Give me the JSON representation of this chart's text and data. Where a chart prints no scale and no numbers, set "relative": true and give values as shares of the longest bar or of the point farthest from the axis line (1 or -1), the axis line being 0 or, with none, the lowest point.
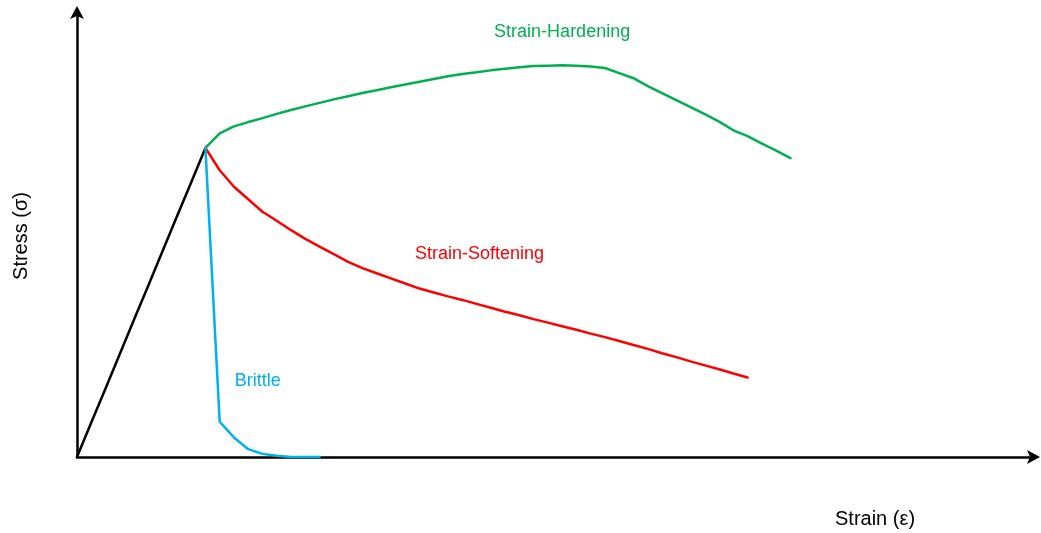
{
  "chart_data": {
    "type": "line",
    "relative": true,
    "xlabel": "Strain (ε)",
    "ylabel": "Stress (σ)",
    "marker": "none",
    "categories": [
      null,
      null,
      null,
      null,
      null,
      null,
      null,
      null,
      null,
      null,
      null,
      null,
      null,
      null,
      null,
      null,
      null,
      null,
      null,
      null,
      null,
      null,
      null,
      null,
      null,
      null,
      null,
      null,
      null,
      null,
      null,
      null,
      null,
      null,
      null,
      null,
      null,
      null,
      null,
      null,
      null,
      null,
      null,
      null,
      null,
      null,
      null,
      null,
      null,
      null,
      null,
      null,
      null,
      null,
      null,
      null,
      null,
      null,
      null,
      null,
      null,
      null,
      null,
      null,
      null,
      null,
      null,
      null
    ],
    "series": [
      {
        "color": "#000000",
        "values": [
          0,
          0.088,
          0.175,
          0.263,
          0.351,
          0.438,
          0.526,
          0.614,
          0.701,
          0.789,
          null,
          null,
          null,
          null,
          null,
          null,
          null,
          null,
          null,
          null,
          null,
          null,
          null,
          null,
          null,
          null,
          null,
          null,
          null,
          null,
          null,
          null,
          null,
          null,
          null,
          null,
          null,
          null,
          null,
          null,
          null,
          null,
          null,
          null,
          null,
          null,
          null,
          null,
          null,
          null,
          null,
          null,
          null,
          null,
          null,
          null,
          null,
          null,
          null,
          null,
          null,
          null,
          null,
          null,
          null,
          null,
          null,
          null
        ]
      },
      {
        "name": "Strain-Hardening",
        "color": "#00b050",
        "values": [
          null,
          null,
          null,
          null,
          null,
          null,
          null,
          null,
          null,
          0.789,
          0.826,
          0.844,
          0.855,
          0.865,
          0.876,
          0.886,
          0.895,
          0.904,
          0.913,
          0.921,
          0.929,
          0.936,
          0.944,
          0.951,
          0.958,
          0.965,
          0.972,
          0.978,
          0.982,
          0.987,
          0.991,
          0.995,
          0.998,
          0.999,
          1.0,
          0.999,
          0.997,
          0.993,
          0.98,
          0.967,
          0.947,
          0.929,
          0.911,
          0.893,
          0.875,
          0.856,
          0.834,
          0.819,
          0.8,
          0.782,
          0.763,
          null,
          null,
          null,
          null,
          null,
          null,
          null,
          null,
          null,
          null,
          null,
          null,
          null,
          null,
          null,
          null,
          null
        ]
      },
      {
        "name": "Strain-Softening",
        "color": "#ff0000",
        "values": [
          null,
          null,
          null,
          null,
          null,
          null,
          null,
          null,
          null,
          0.789,
          0.732,
          0.69,
          0.658,
          0.626,
          0.603,
          0.579,
          0.557,
          0.537,
          0.518,
          0.498,
          0.482,
          0.469,
          0.456,
          0.443,
          0.43,
          0.42,
          0.41,
          0.401,
          0.391,
          0.381,
          0.371,
          0.362,
          0.352,
          0.343,
          0.334,
          0.325,
          0.315,
          0.306,
          0.296,
          0.286,
          0.276,
          0.265,
          0.255,
          0.244,
          0.234,
          0.224,
          0.213,
          0.203,
          null,
          null,
          null,
          null,
          null,
          null,
          null,
          null,
          null,
          null,
          null,
          null,
          null,
          null,
          null,
          null,
          null,
          null,
          null,
          null
        ]
      },
      {
        "name": "Brittle",
        "color": "#00b0f0",
        "values": [
          null,
          null,
          null,
          null,
          null,
          null,
          null,
          null,
          null,
          0.789,
          0.09,
          0.05,
          0.02,
          0.008,
          0.003,
          0,
          0,
          0,
          null,
          null,
          null,
          null,
          null,
          null,
          null,
          null,
          null,
          null,
          null,
          null,
          null,
          null,
          null,
          null,
          null,
          null,
          null,
          null,
          null,
          null,
          null,
          null,
          null,
          null,
          null,
          null,
          null,
          null,
          null,
          null,
          null,
          null,
          null,
          null,
          null,
          null,
          null,
          null,
          null,
          null,
          null,
          null,
          null,
          null,
          null,
          null,
          null,
          null
        ]
      }
    ]
  }
}
